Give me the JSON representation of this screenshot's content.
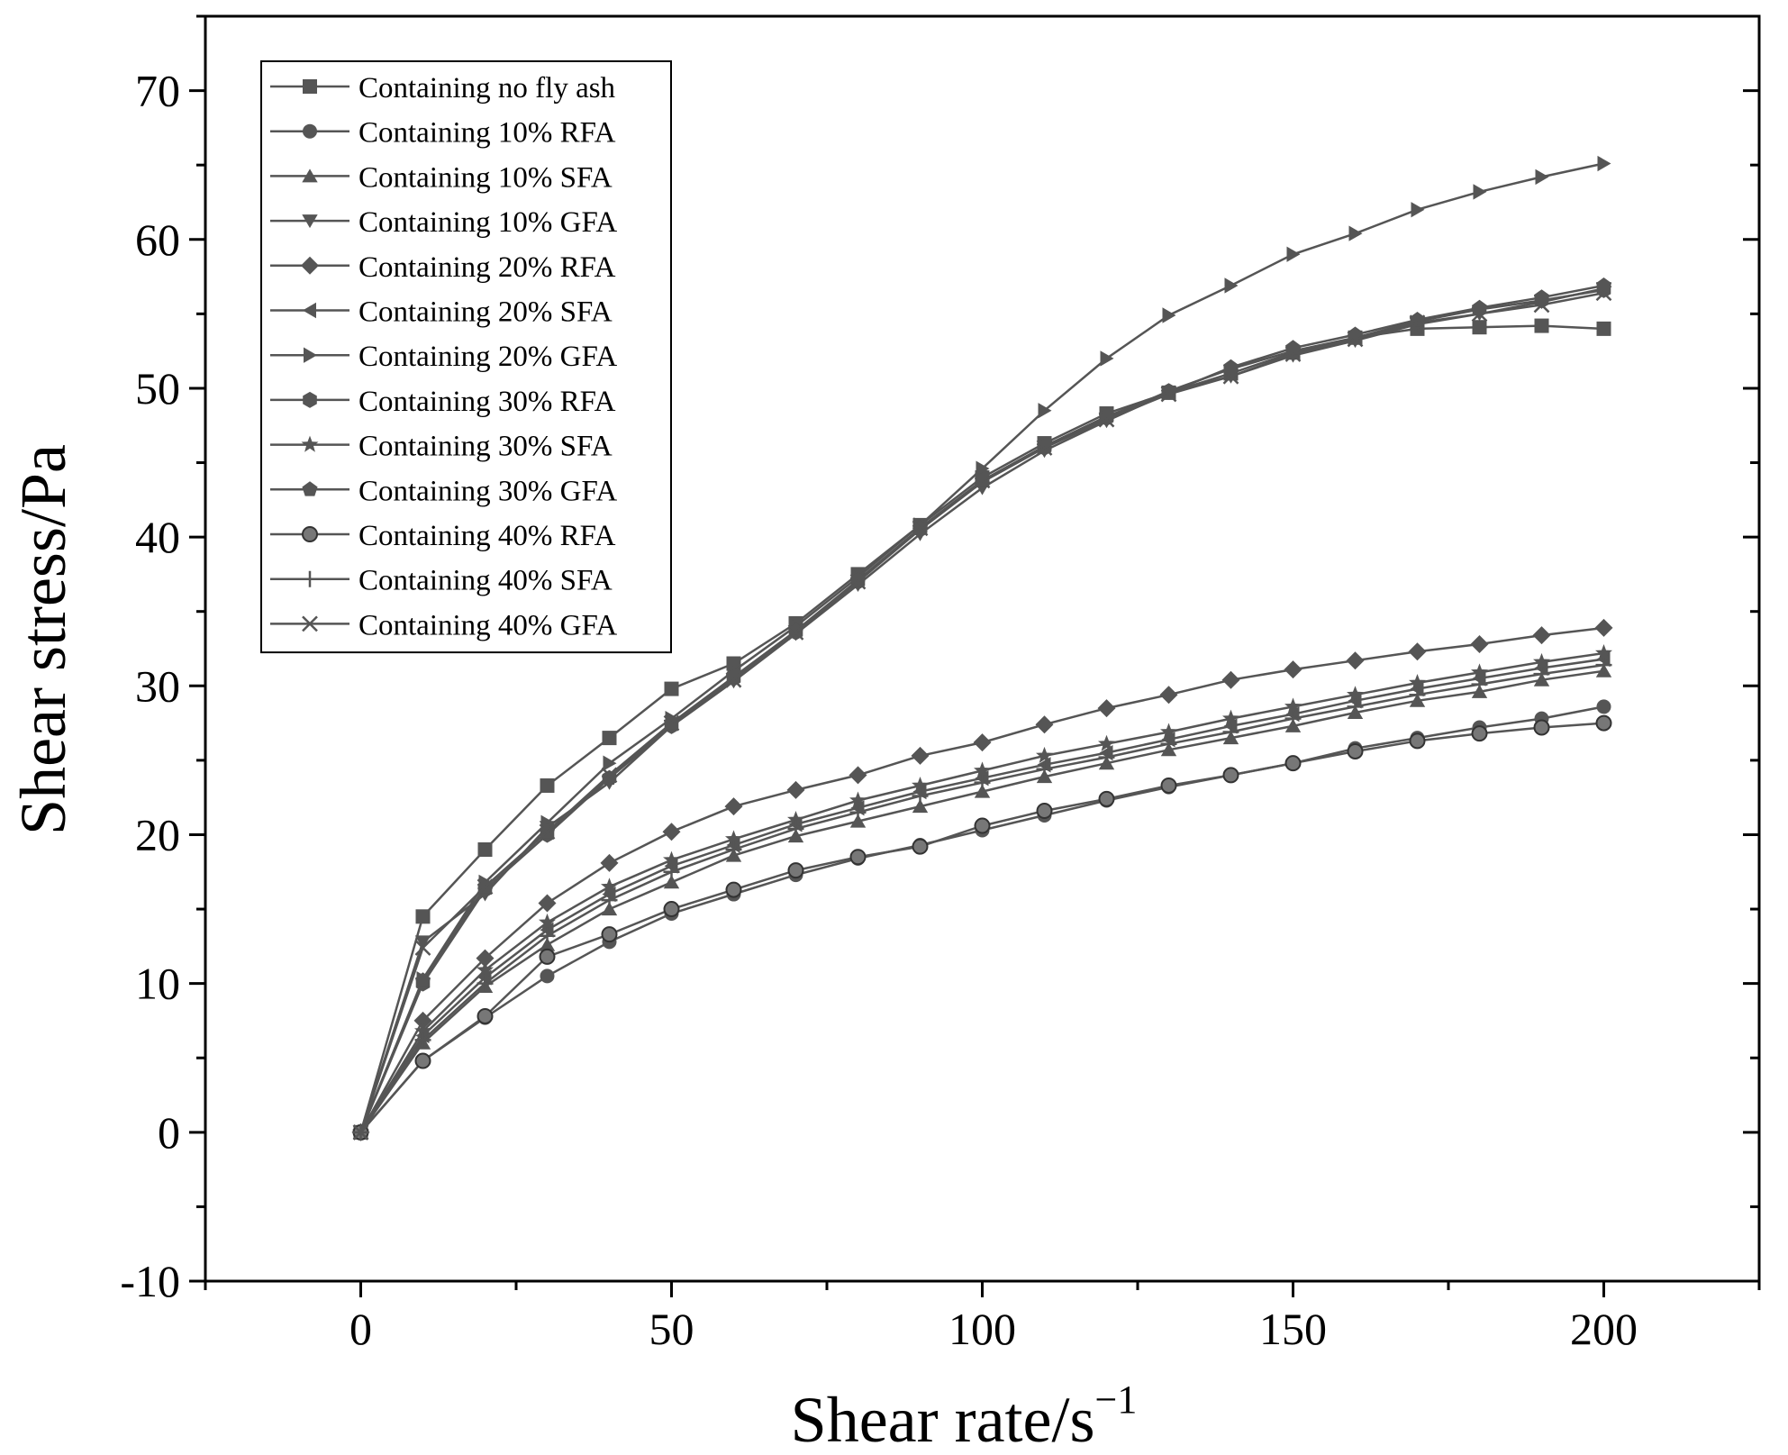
{
  "chart_data": {
    "type": "line",
    "title": "",
    "xlabel": "Shear rate/s",
    "xlabel_superscript": "−1",
    "ylabel": "Shear stress/Pa",
    "xlim": [
      -25,
      225
    ],
    "ylim": [
      -10,
      75
    ],
    "xticks": [
      0,
      50,
      100,
      150,
      200
    ],
    "yticks": [
      -10,
      0,
      10,
      20,
      30,
      40,
      50,
      60,
      70
    ],
    "legend_position": "top-left",
    "grid": false,
    "x": [
      0,
      10,
      20,
      30,
      40,
      50,
      60,
      70,
      80,
      90,
      100,
      110,
      120,
      130,
      140,
      150,
      160,
      170,
      180,
      190,
      200
    ],
    "series": [
      {
        "name": "Containing no fly ash",
        "marker": "square",
        "values": [
          0,
          14.5,
          19.0,
          23.3,
          26.5,
          29.8,
          31.5,
          34.2,
          37.5,
          40.8,
          44.0,
          46.3,
          48.3,
          49.7,
          51.0,
          52.4,
          53.4,
          54.0,
          54.1,
          54.2,
          54.0
        ]
      },
      {
        "name": "Containing 10% RFA",
        "marker": "circle",
        "values": [
          0,
          4.8,
          7.7,
          10.5,
          12.8,
          14.7,
          16.0,
          17.3,
          18.4,
          19.3,
          20.3,
          21.3,
          22.3,
          23.2,
          24.0,
          24.8,
          25.8,
          26.5,
          27.2,
          27.8,
          28.6
        ]
      },
      {
        "name": "Containing 10% SFA",
        "marker": "triangle-up",
        "values": [
          0,
          6.0,
          9.8,
          12.6,
          15.0,
          16.8,
          18.6,
          19.9,
          20.9,
          21.9,
          22.9,
          23.9,
          24.8,
          25.7,
          26.5,
          27.3,
          28.2,
          29.0,
          29.6,
          30.4,
          31.0
        ]
      },
      {
        "name": "Containing 10% GFA",
        "marker": "triangle-down",
        "values": [
          0,
          12.8,
          16.0,
          20.5,
          23.5,
          27.3,
          30.3,
          33.5,
          36.8,
          40.2,
          43.3,
          45.8,
          47.8,
          49.7,
          50.8,
          52.2,
          53.2,
          54.3,
          55.0,
          55.8,
          56.7
        ]
      },
      {
        "name": "Containing 20% RFA",
        "marker": "diamond",
        "values": [
          0,
          7.5,
          11.7,
          15.4,
          18.1,
          20.2,
          21.9,
          23.0,
          24.0,
          25.3,
          26.2,
          27.4,
          28.5,
          29.4,
          30.4,
          31.1,
          31.7,
          32.3,
          32.8,
          33.4,
          33.9
        ]
      },
      {
        "name": "Containing 20% SFA",
        "marker": "triangle-left",
        "values": [
          0,
          6.5,
          10.4,
          13.6,
          16.0,
          17.9,
          19.3,
          20.7,
          21.8,
          22.9,
          23.8,
          24.7,
          25.5,
          26.4,
          27.3,
          28.1,
          29.0,
          29.8,
          30.5,
          31.2,
          31.8
        ]
      },
      {
        "name": "Containing 20% GFA",
        "marker": "triangle-right",
        "values": [
          0,
          10.3,
          16.8,
          20.8,
          24.8,
          27.8,
          31.0,
          34.0,
          37.3,
          40.8,
          44.6,
          48.5,
          52.0,
          54.9,
          56.9,
          59.0,
          60.4,
          62.0,
          63.2,
          64.2,
          65.1
        ]
      },
      {
        "name": "Containing 30% RFA",
        "marker": "hexagon",
        "values": [
          0,
          10.0,
          16.3,
          20.0,
          23.8,
          27.3,
          30.5,
          33.6,
          37.0,
          40.5,
          43.7,
          46.0,
          48.0,
          49.8,
          51.3,
          52.5,
          53.4,
          54.5,
          55.3,
          55.9,
          56.6
        ]
      },
      {
        "name": "Containing 30% SFA",
        "marker": "star",
        "values": [
          0,
          6.8,
          10.9,
          14.1,
          16.5,
          18.3,
          19.7,
          21.0,
          22.3,
          23.3,
          24.3,
          25.3,
          26.1,
          26.9,
          27.8,
          28.6,
          29.4,
          30.2,
          30.9,
          31.6,
          32.2
        ]
      },
      {
        "name": "Containing 30% GFA",
        "marker": "pentagon",
        "values": [
          0,
          10.2,
          16.5,
          20.2,
          23.8,
          27.5,
          30.6,
          33.7,
          37.1,
          40.6,
          43.8,
          46.1,
          48.1,
          49.7,
          51.4,
          52.7,
          53.6,
          54.6,
          55.4,
          56.1,
          56.9
        ]
      },
      {
        "name": "Containing 40% RFA",
        "marker": "sphere",
        "values": [
          0,
          4.8,
          7.8,
          11.8,
          13.3,
          15.0,
          16.3,
          17.6,
          18.5,
          19.2,
          20.6,
          21.6,
          22.4,
          23.3,
          24.0,
          24.8,
          25.6,
          26.3,
          26.8,
          27.2,
          27.5
        ]
      },
      {
        "name": "Containing 40% SFA",
        "marker": "plus",
        "values": [
          0,
          6.2,
          10.0,
          13.2,
          15.6,
          17.5,
          19.0,
          20.4,
          21.5,
          22.6,
          23.5,
          24.4,
          25.2,
          26.1,
          26.9,
          27.8,
          28.6,
          29.4,
          30.1,
          30.8,
          31.4
        ]
      },
      {
        "name": "Containing 40% GFA",
        "marker": "x",
        "values": [
          0,
          12.4,
          16.5,
          20.2,
          24.0,
          27.5,
          30.4,
          33.6,
          37.0,
          40.6,
          43.8,
          46.0,
          47.9,
          49.6,
          50.8,
          52.3,
          53.3,
          54.4,
          55.0,
          55.6,
          56.4
        ]
      }
    ]
  },
  "style": {
    "marker_fill": "#555555",
    "line_color": "#555555",
    "axis_color": "#000000",
    "background": "#ffffff"
  }
}
